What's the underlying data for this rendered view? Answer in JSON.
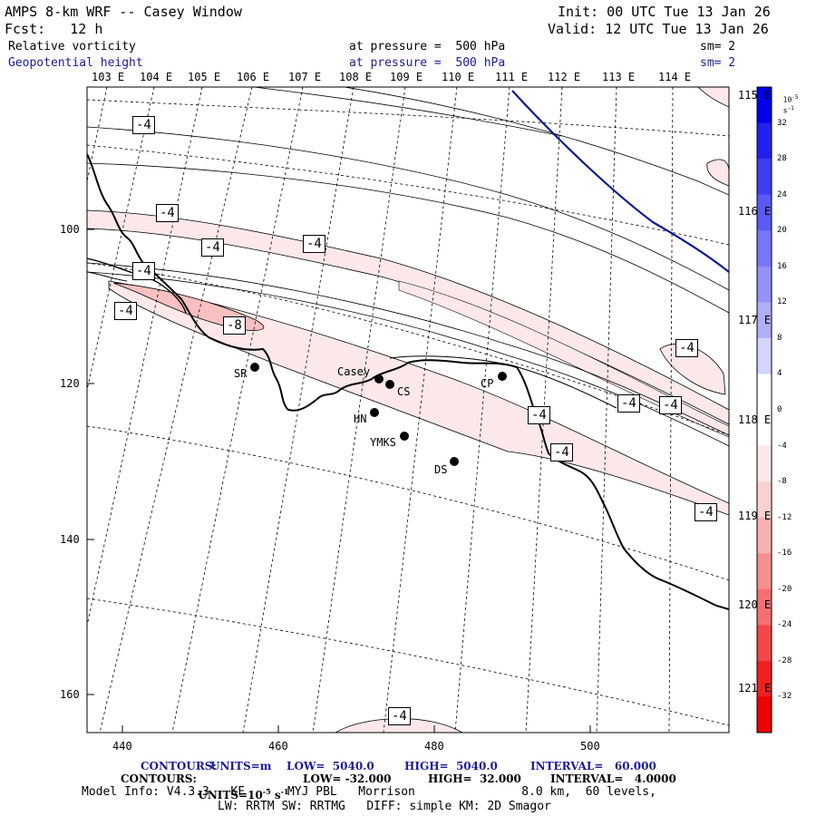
{
  "header": {
    "title": "AMPS 8-km WRF -- Casey Window",
    "init": "Init: 00 UTC Tue 13 Jan 26",
    "fcst": "Fcst:   12 h",
    "valid": "Valid: 12 UTC Tue 13 Jan 26",
    "field1_name": "Relative vorticity",
    "field1_level": "at pressure =  500 hPa",
    "field1_sm": "sm= 2",
    "field2_name": "Geopotential height",
    "field2_level": "at pressure =  500 hPa",
    "field2_sm": "sm= 2"
  },
  "top_lon_labels": [
    "103 E",
    "104 E",
    "105 E",
    "106 E",
    "107 E",
    "108 E",
    "109 E",
    "110 E",
    "111 E",
    "112 E",
    "113 E",
    "114 E"
  ],
  "right_lon_labels": [
    "115 E",
    "116 E",
    "117 E",
    "118 E",
    "119 E",
    "120 E",
    "121 E"
  ],
  "x_axis_labels": [
    "440",
    "460",
    "480",
    "500"
  ],
  "y_axis_labels": [
    "100",
    "120",
    "140",
    "160"
  ],
  "colorbar": {
    "unit": "10^-5 s^-1",
    "unit_base": "10",
    "unit_exp": "-5",
    "unit_suffix": "s",
    "unit_suffix_exp": "-1",
    "labels": [
      "32",
      "28",
      "24",
      "20",
      "16",
      "12",
      "8",
      "4",
      "0",
      "-4",
      "-8",
      "-12",
      "-16",
      "-20",
      "-24",
      "-28",
      "-32"
    ],
    "colors": [
      "#0000ee",
      "#2222f0",
      "#3e3ef2",
      "#5a5af4",
      "#7676f6",
      "#9292f8",
      "#aeaefa",
      "#d4d4fc",
      "#ffffff",
      "#ffffff",
      "#fce8e8",
      "#fad0d0",
      "#f8b0b0",
      "#f69090",
      "#f47070",
      "#f24848",
      "#f02020",
      "#ee0000"
    ]
  },
  "stations": [
    {
      "id": "SR",
      "label": "SR"
    },
    {
      "id": "Casey",
      "label": "Casey"
    },
    {
      "id": "CS",
      "label": "CS"
    },
    {
      "id": "CP",
      "label": "CP"
    },
    {
      "id": "HN",
      "label": "HN"
    },
    {
      "id": "YMKS",
      "label": "YMKS"
    },
    {
      "id": "DS",
      "label": "DS"
    }
  ],
  "contour_labels": [
    "-4",
    "-4",
    "-4",
    "-4",
    "-4",
    "-4",
    "-8",
    "-4",
    "-4",
    "-4",
    "-4",
    "-4",
    "-4",
    "-4",
    "-4"
  ],
  "footer": {
    "contours1_label": "CONTOURS:",
    "contours1_units": "UNITS=m",
    "contours1_low": "LOW=  5040.0",
    "contours1_high": "HIGH=  5040.0",
    "contours1_interval": "INTERVAL=   60.000",
    "contours2_label": "CONTOURS:",
    "contours2_units_pre": "UNITS=10",
    "contours2_units_exp1": "-5",
    "contours2_units_mid": " s",
    "contours2_units_exp2": "-1",
    "contours2_low": "LOW= -32.000",
    "contours2_high": "HIGH=  32.000",
    "contours2_interval": "INTERVAL=   4.0000",
    "model_info": "Model Info: V4.3.3   KF      MYJ PBL   Morrison               8.0 km,  60 levels,",
    "physics_info": "LW: RRTM SW: RRTMG   DIFF: simple KM: 2D Smagor"
  }
}
